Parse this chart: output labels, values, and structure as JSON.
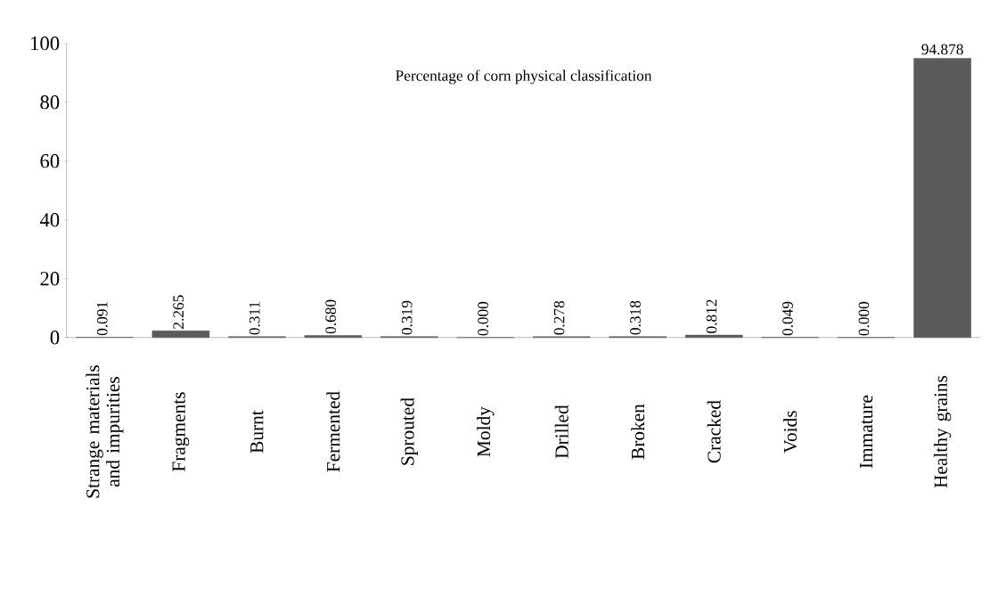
{
  "chart_data": {
    "type": "bar",
    "title": "Percentage of corn physical classification",
    "categories": [
      "Strange materials and impurities",
      "Fragments",
      "Burnt",
      "Fermented",
      "Sprouted",
      "Moldy",
      "Drilled",
      "Broken",
      "Cracked",
      "Voids",
      "Immature",
      "Healthy grains"
    ],
    "values": [
      0.091,
      2.265,
      0.311,
      0.68,
      0.319,
      0.0,
      0.278,
      0.318,
      0.812,
      0.049,
      0.0,
      94.878
    ],
    "value_labels": [
      "0.091",
      "2.265",
      "0.311",
      "0.680",
      "0.319",
      "0.000",
      "0.278",
      "0.318",
      "0.812",
      "0.049",
      "0.000",
      "94.878"
    ],
    "color": "#5a5a5a",
    "ylim": [
      0,
      100
    ],
    "yticks": [
      0,
      20,
      40,
      60,
      80,
      100
    ],
    "grid": false
  }
}
